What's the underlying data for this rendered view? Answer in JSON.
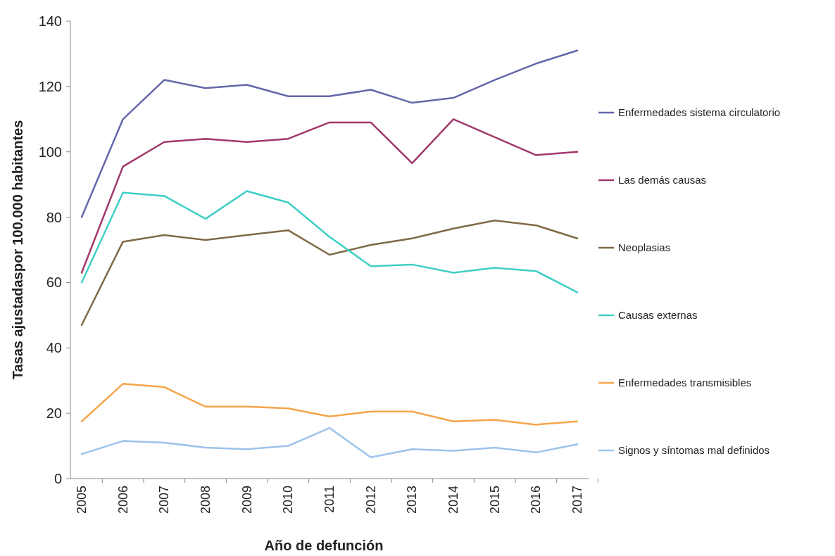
{
  "chart_data": {
    "type": "line",
    "xlabel": "Año de defunción",
    "ylabel": "Tasas ajustadaspor 100.000 habitantes",
    "categories": [
      "2005",
      "2006",
      "2007",
      "2008",
      "2009",
      "2010",
      "2011",
      "2012",
      "2013",
      "2014",
      "2015",
      "2016",
      "2017"
    ],
    "ylim": [
      0,
      140
    ],
    "yticks": [
      0,
      20,
      40,
      60,
      80,
      100,
      120,
      140
    ],
    "grid": false,
    "legend": "right",
    "marker": "none",
    "line_style": "solid",
    "series": [
      {
        "name": "Enfermedades sistema circulatorio",
        "color": "#6467a9",
        "values": [
          80,
          110,
          122,
          119.5,
          120.5,
          117,
          117,
          119,
          115,
          116.5,
          122,
          127,
          131
        ]
      },
      {
        "name": "Las demás causas",
        "color": "#a0386a",
        "values": [
          63,
          95.5,
          103,
          104,
          103,
          104,
          109,
          109,
          96.5,
          110,
          104.5,
          99,
          100
        ]
      },
      {
        "name": "Neoplasias",
        "color": "#7f6a45",
        "values": [
          47,
          72.5,
          74.5,
          73,
          74.5,
          76,
          68.5,
          71.5,
          73.5,
          76.5,
          79,
          77.5,
          73.5
        ]
      },
      {
        "name": "Causas externas",
        "color": "#3fcfc6",
        "values": [
          60,
          87.5,
          86.5,
          79.5,
          88,
          84.5,
          74,
          65,
          65.5,
          63,
          64.5,
          63.5,
          57
        ]
      },
      {
        "name": "Enfermedades transmisibles",
        "color": "#f5a54a",
        "values": [
          17.5,
          29,
          28,
          22,
          22,
          21.5,
          19,
          20.5,
          20.5,
          17.5,
          18,
          16.5,
          17.5
        ]
      },
      {
        "name": "Signos y síntomas mal definidos",
        "color": "#9cc3ea",
        "values": [
          7.5,
          11.5,
          11,
          9.5,
          9,
          10,
          15.5,
          6.5,
          9,
          8.5,
          9.5,
          8,
          10.5
        ]
      }
    ]
  }
}
